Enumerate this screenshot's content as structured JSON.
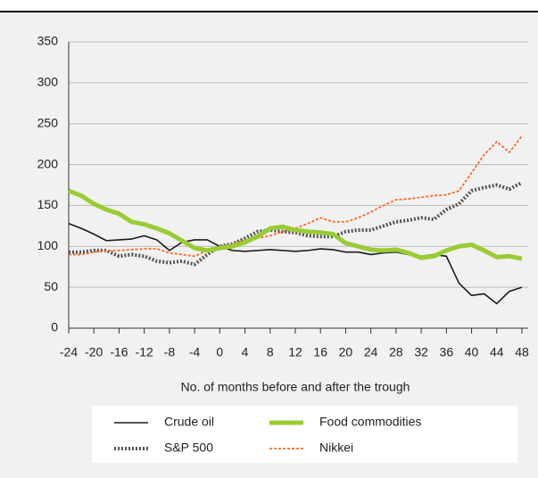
{
  "chart_data": {
    "type": "line",
    "x_label": "No. of months before and after the trough",
    "x": [
      -24,
      -22,
      -20,
      -18,
      -16,
      -14,
      -12,
      -10,
      -8,
      -6,
      -4,
      -2,
      0,
      2,
      4,
      6,
      8,
      10,
      12,
      14,
      16,
      18,
      20,
      22,
      24,
      26,
      28,
      30,
      32,
      34,
      36,
      38,
      40,
      42,
      44,
      46,
      48
    ],
    "series": [
      {
        "name": "Crude oil",
        "color": "#1a1a1a",
        "values": [
          128,
          122,
          115,
          107,
          108,
          109,
          113,
          108,
          95,
          105,
          108,
          108,
          100,
          95,
          94,
          95,
          96,
          95,
          94,
          95,
          97,
          96,
          93,
          93,
          90,
          92,
          93,
          90,
          88,
          90,
          88,
          55,
          40,
          42,
          30,
          45,
          50
        ]
      },
      {
        "name": "Food commodities",
        "color": "#99cc33",
        "values": [
          168,
          162,
          152,
          145,
          140,
          130,
          127,
          122,
          116,
          107,
          98,
          95,
          98,
          100,
          105,
          112,
          122,
          124,
          120,
          118,
          117,
          115,
          104,
          100,
          96,
          95,
          96,
          92,
          86,
          88,
          95,
          100,
          102,
          95,
          87,
          88,
          85
        ]
      },
      {
        "name": "S&P 500",
        "color": "#555555",
        "values": [
          93,
          93,
          95,
          95,
          88,
          90,
          88,
          82,
          80,
          82,
          78,
          90,
          100,
          103,
          110,
          118,
          120,
          118,
          117,
          113,
          112,
          112,
          118,
          120,
          120,
          125,
          130,
          132,
          135,
          133,
          145,
          152,
          168,
          172,
          175,
          170,
          178
        ]
      },
      {
        "name": "Nikkei",
        "color": "#ff6622",
        "values": [
          90,
          90,
          93,
          95,
          95,
          96,
          97,
          97,
          92,
          90,
          88,
          95,
          100,
          103,
          108,
          110,
          113,
          118,
          122,
          128,
          135,
          130,
          130,
          135,
          142,
          150,
          157,
          158,
          160,
          162,
          163,
          168,
          190,
          212,
          228,
          215,
          235
        ]
      }
    ],
    "xlim": [
      -24,
      48
    ],
    "xticks": [
      -24,
      -20,
      -16,
      -12,
      -8,
      -4,
      0,
      4,
      8,
      12,
      16,
      20,
      24,
      28,
      32,
      36,
      40,
      44,
      48
    ],
    "ylim": [
      0,
      350
    ],
    "yticks": [
      0,
      50,
      100,
      150,
      200,
      250,
      300,
      350
    ],
    "grid": true
  }
}
